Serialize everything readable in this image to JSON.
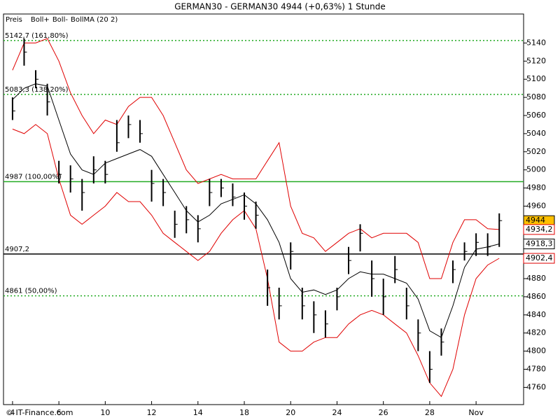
{
  "chart_data": {
    "type": "ohlc",
    "title": "GERMAN30 - GERMAN30     4944 (+0,63%)     1 Stunde",
    "footer": "© IT-Finance.com",
    "legend": [
      {
        "text": "Preis",
        "color": "#000000"
      },
      {
        "text": "Boll+",
        "color": "#e00000"
      },
      {
        "text": "Boll-",
        "color": "#e00000"
      },
      {
        "text": "BollMA (20 2)",
        "color": "#000000"
      }
    ],
    "x": [
      0,
      0.5,
      1,
      1.5,
      2,
      2.5,
      3,
      3.5,
      4,
      4.5,
      5,
      5.5,
      6,
      6.5,
      7,
      7.5,
      8,
      8.5,
      9,
      9.5,
      10,
      10.5,
      11,
      11.5,
      12,
      12.5,
      13,
      13.5,
      14,
      14.5,
      15,
      15.5,
      16,
      16.5,
      17,
      17.5,
      18,
      18.5,
      19,
      19.5,
      20,
      20.5,
      21
    ],
    "high": [
      5080,
      5145,
      5110,
      5095,
      5010,
      5005,
      4990,
      5015,
      5010,
      5055,
      5060,
      5055,
      5000,
      4990,
      4955,
      4960,
      4950,
      4990,
      4990,
      4985,
      4975,
      4965,
      4890,
      4870,
      4920,
      4870,
      4855,
      4845,
      4870,
      4915,
      4940,
      4900,
      4880,
      4905,
      4870,
      4835,
      4800,
      4825,
      4900,
      4920,
      4930,
      4930,
      4952
    ],
    "low": [
      5055,
      5115,
      5090,
      5060,
      4985,
      4975,
      4955,
      4985,
      4985,
      5020,
      5035,
      5030,
      4965,
      4960,
      4925,
      4930,
      4920,
      4960,
      4970,
      4960,
      4945,
      4935,
      4850,
      4835,
      4890,
      4835,
      4820,
      4815,
      4845,
      4885,
      4910,
      4860,
      4840,
      4875,
      4835,
      4800,
      4765,
      4795,
      4875,
      4900,
      4905,
      4905,
      4915
    ],
    "close": [
      5065,
      5130,
      5100,
      5075,
      4995,
      4990,
      4975,
      5000,
      4995,
      5030,
      5050,
      5040,
      4985,
      4975,
      4940,
      4945,
      4935,
      4975,
      4980,
      4970,
      4960,
      4950,
      4870,
      4850,
      4910,
      4850,
      4840,
      4830,
      4860,
      4900,
      4930,
      4880,
      4860,
      4890,
      4850,
      4820,
      4780,
      4810,
      4890,
      4910,
      4920,
      4915,
      4944
    ],
    "color": "#000000",
    "series": [
      {
        "name": "Boll+",
        "color": "#e00000",
        "values": [
          5110,
          5140,
          5140,
          5145,
          5120,
          5085,
          5060,
          5040,
          5055,
          5050,
          5070,
          5080,
          5080,
          5060,
          5030,
          5000,
          4985,
          4990,
          4995,
          4990,
          4990,
          4990,
          5010,
          5030,
          4960,
          4930,
          4925,
          4910,
          4920,
          4930,
          4935,
          4925,
          4930,
          4930,
          4930,
          4920,
          4880,
          4880,
          4920,
          4945,
          4945,
          4935,
          4934.2
        ]
      },
      {
        "name": "Boll-",
        "color": "#e00000",
        "values": [
          5045,
          5040,
          5050,
          5040,
          4990,
          4950,
          4940,
          4950,
          4960,
          4975,
          4965,
          4965,
          4950,
          4930,
          4920,
          4910,
          4900,
          4910,
          4930,
          4945,
          4955,
          4935,
          4880,
          4810,
          4800,
          4800,
          4810,
          4815,
          4815,
          4830,
          4840,
          4845,
          4840,
          4830,
          4820,
          4795,
          4765,
          4750,
          4780,
          4840,
          4880,
          4895,
          4902.4
        ]
      },
      {
        "name": "BollMA (20 2)",
        "color": "#000000",
        "values": [
          5077.5,
          5090,
          5095,
          5092.5,
          5055,
          5017.5,
          5000,
          4995,
          5007.5,
          5012.5,
          5017.5,
          5022.5,
          5015,
          4995,
          4975,
          4955,
          4942.5,
          4950,
          4962.5,
          4967.5,
          4972.5,
          4962.5,
          4945,
          4920,
          4880,
          4865,
          4867.5,
          4862.5,
          4867.5,
          4880,
          4887.5,
          4885,
          4885,
          4880,
          4875,
          4857.5,
          4822.5,
          4815,
          4850,
          4892.5,
          4912.5,
          4915,
          4918.3
        ]
      }
    ],
    "levels": [
      {
        "value": 5142.7,
        "label": "5142,7 (161,80%)",
        "color": "#22aa22",
        "style": "dotted"
      },
      {
        "value": 5083.3,
        "label": "5083,3 (138,20%)",
        "color": "#22aa22",
        "style": "dotted"
      },
      {
        "value": 4987,
        "label": "4987 (100,00%)",
        "color": "#22aa22",
        "style": "solid"
      },
      {
        "value": 4907.2,
        "label": "4907,2",
        "color": "#000000",
        "style": "solid"
      },
      {
        "value": 4861,
        "label": "4861 (50,00%)",
        "color": "#22aa22",
        "style": "dotted"
      }
    ],
    "last_labels": [
      {
        "value": 4944,
        "label": "4944",
        "color": "#000000",
        "background": "#ffc000"
      },
      {
        "value": 4934.2,
        "label": "4934,2",
        "color": "#e00000",
        "background": "#ffffff"
      },
      {
        "value": 4918.3,
        "label": "4918,3",
        "color": "#000000",
        "background": "#ffffff"
      },
      {
        "value": 4902.4,
        "label": "4902,4",
        "color": "#e00000",
        "background": "#ffffff"
      }
    ],
    "xlim": [
      -0.39,
      22.05
    ],
    "xticks": [
      {
        "value": 0,
        "label": "4"
      },
      {
        "value": 2,
        "label": "6"
      },
      {
        "value": 4,
        "label": "10"
      },
      {
        "value": 6,
        "label": "12"
      },
      {
        "value": 8,
        "label": "14"
      },
      {
        "value": 10,
        "label": "18"
      },
      {
        "value": 12,
        "label": "20"
      },
      {
        "value": 14,
        "label": "24"
      },
      {
        "value": 16,
        "label": "26"
      },
      {
        "value": 18,
        "label": "28"
      },
      {
        "value": 20,
        "label": "Nov"
      }
    ],
    "ylim": [
      4741,
      5172
    ],
    "yticks": [
      4760,
      4780,
      4800,
      4820,
      4840,
      4860,
      4880,
      4900,
      4920,
      4940,
      4960,
      4980,
      5000,
      5020,
      5040,
      5060,
      5080,
      5100,
      5120,
      5140
    ]
  }
}
